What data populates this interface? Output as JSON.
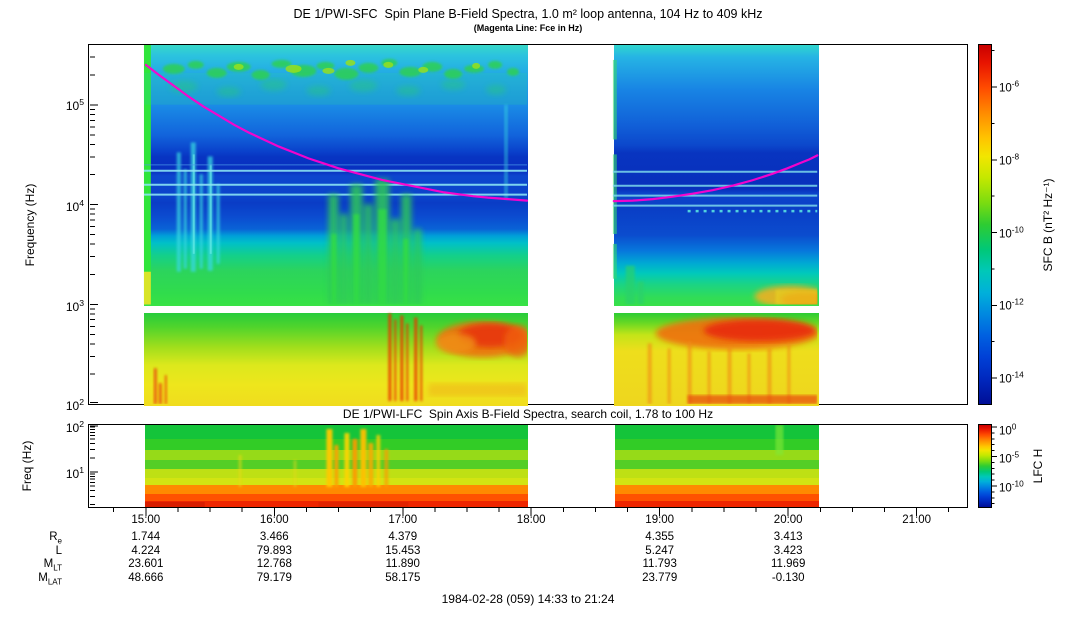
{
  "figure": {
    "title": "DE 1/PWI-SFC  Spin Plane B-Field Spectra, 1.0 m² loop antenna, 104 Hz to 409 kHz",
    "subtitle": "(Magenta Line: Fce in Hz)",
    "footer": "1984-02-28 (059) 14:33 to 21:24"
  },
  "sfc": {
    "ylabel": "Frequency (Hz)",
    "yticks": [
      {
        "b": "10",
        "e": "5"
      },
      {
        "b": "10",
        "e": "4"
      },
      {
        "b": "10",
        "e": "3"
      },
      {
        "b": "10",
        "e": "2"
      }
    ],
    "colorbar": {
      "label": "SFC B (nT² Hz⁻¹)",
      "ticks": [
        {
          "b": "10",
          "e": "-6"
        },
        {
          "b": "10",
          "e": "-8"
        },
        {
          "b": "10",
          "e": "-10"
        },
        {
          "b": "10",
          "e": "-12"
        },
        {
          "b": "10",
          "e": "-14"
        }
      ]
    }
  },
  "lfc": {
    "title": "DE 1/PWI-LFC  Spin Axis B-Field Spectra, search coil, 1.78 to 100 Hz",
    "ylabel": "Freq (Hz)",
    "yticks": [
      {
        "b": "10",
        "e": "2"
      },
      {
        "b": "10",
        "e": "1"
      }
    ],
    "colorbar": {
      "label": "LFC H",
      "ticks": [
        {
          "b": "10",
          "e": "0"
        },
        {
          "b": "10",
          "e": "-5"
        },
        {
          "b": "10",
          "e": "-10"
        }
      ]
    }
  },
  "xaxis": {
    "labels": [
      "15:00",
      "16:00",
      "17:00",
      "18:00",
      "19:00",
      "20:00",
      "21:00"
    ]
  },
  "ephemeris": {
    "row_labels": [
      {
        "main": "R",
        "sub": "e"
      },
      {
        "main": "L",
        "sub": ""
      },
      {
        "main": "M",
        "sub": "LT"
      },
      {
        "main": "M",
        "sub": "LAT"
      }
    ],
    "columns": [
      {
        "time": "15:00",
        "re": "1.744",
        "l": "4.224",
        "mlt": "23.601",
        "mlat": "48.666"
      },
      {
        "time": "16:00",
        "re": "3.466",
        "l": "79.893",
        "mlt": "12.768",
        "mlat": "79.179"
      },
      {
        "time": "17:00",
        "re": "4.379",
        "l": "15.453",
        "mlt": "11.890",
        "mlat": "58.175"
      },
      {
        "time": "18:00",
        "re": "",
        "l": "",
        "mlt": "",
        "mlat": ""
      },
      {
        "time": "19:00",
        "re": "4.355",
        "l": "5.247",
        "mlt": "11.793",
        "mlat": "23.779"
      },
      {
        "time": "20:00",
        "re": "3.413",
        "l": "3.423",
        "mlt": "11.969",
        "mlat": "-0.130"
      },
      {
        "time": "21:00",
        "re": "",
        "l": "",
        "mlt": "",
        "mlat": ""
      }
    ]
  },
  "chart_data": [
    {
      "type": "heatmap",
      "instrument": "DE 1/PWI-SFC",
      "title": "DE 1/PWI-SFC  Spin Plane B-Field Spectra, 1.0 m² loop antenna, 104 Hz to 409 kHz",
      "subtitle": "(Magenta Line: Fce in Hz)",
      "ylabel": "Frequency (Hz)",
      "y_scale": "log",
      "y_range_hz": [
        100,
        409000
      ],
      "x_range_ut": [
        "14:33",
        "21:24"
      ],
      "xticks": [
        "15:00",
        "16:00",
        "17:00",
        "18:00",
        "19:00",
        "20:00",
        "21:00"
      ],
      "x_minor_tick_minutes": 15,
      "data_segments_ut": [
        [
          "14:58",
          "17:56"
        ],
        [
          "18:38",
          "20:11"
        ]
      ],
      "colorbar": {
        "label": "SFC B (nT² Hz⁻¹)",
        "scale": "log",
        "tick_values": [
          "1e-6",
          "1e-8",
          "1e-10",
          "1e-12",
          "1e-14"
        ],
        "colormap": "rainbow, red=high to dark-blue=low"
      },
      "fce_line": {
        "name": "Fce (electron cyclotron frequency)",
        "color": "#FF00CC",
        "points_ut_hz": [
          [
            "14:59",
            250000
          ],
          [
            "15:30",
            100000
          ],
          [
            "16:00",
            42000
          ],
          [
            "16:30",
            26000
          ],
          [
            "17:00",
            17500
          ],
          [
            "17:30",
            13500
          ],
          [
            "17:56",
            11500
          ],
          [
            "18:38",
            11500
          ],
          [
            "19:00",
            12500
          ],
          [
            "19:30",
            15500
          ],
          [
            "20:00",
            23000
          ],
          [
            "20:11",
            31000
          ]
        ]
      },
      "features": [
        "patchy green auroral emission band 100-400 kHz across first segment",
        "dark blue low-power band near 20-60 kHz",
        "narrow cyan horizontal interference lines near 15-25 kHz",
        "green chorus-like burst columns 1-15 kHz around 16:25-17:00",
        "cyan vertical bursts near 15:05-15:35",
        "broad green-to-yellow band below ~3 kHz",
        "intense orange-red emission 100-900 Hz after ~16:50 and through 18:40-20:11"
      ]
    },
    {
      "type": "heatmap",
      "instrument": "DE 1/PWI-LFC",
      "title": "DE 1/PWI-LFC  Spin Axis B-Field Spectra, search coil, 1.78 to 100 Hz",
      "ylabel": "Freq (Hz)",
      "y_scale": "log",
      "y_range_hz": [
        1.78,
        100
      ],
      "x_range_ut": [
        "14:33",
        "21:24"
      ],
      "data_segments_ut": [
        [
          "14:58",
          "17:56"
        ],
        [
          "18:38",
          "20:11"
        ]
      ],
      "colorbar": {
        "label": "LFC H",
        "scale": "log",
        "tick_values": [
          "1e0",
          "1e-5",
          "1e-10"
        ],
        "colormap": "rainbow, red=high to blue=low"
      },
      "features": [
        "horizontally banded spectrum: green at high frequencies grading through yellow to orange and red below ~5 Hz",
        "impulsive yellow-orange bursts around 16:20-16:55 extending up to 100 Hz"
      ]
    }
  ]
}
